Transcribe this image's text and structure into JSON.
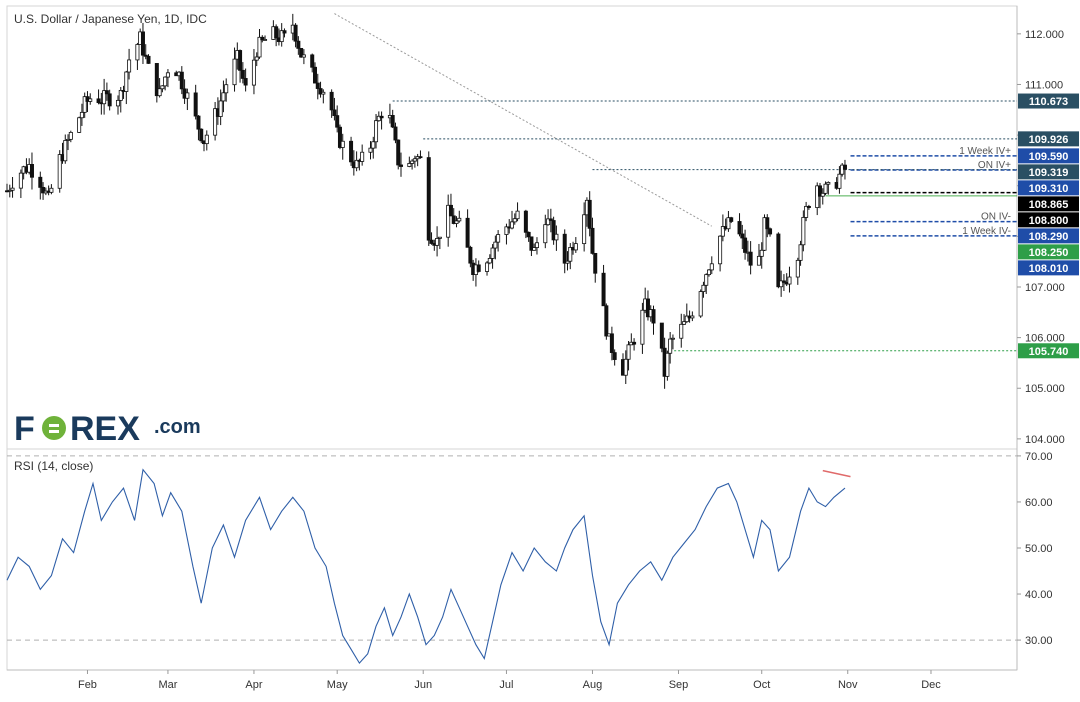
{
  "chart_data": [
    {
      "type": "candlestick",
      "title": "U.S. Dollar / Japanese Yen, 1D, IDC",
      "xlabel": "",
      "ylabel": "",
      "ylim": [
        103.8,
        112.55
      ],
      "yticks": [
        104.0,
        105.0,
        106.0,
        107.0,
        108.0,
        109.0,
        110.0,
        111.0,
        112.0
      ],
      "ytick_labels": [
        "104.000",
        "105.000",
        "106.000",
        "107.000",
        "108.000",
        "109.000",
        "110.000",
        "111.000",
        "112.000"
      ],
      "x_tick_labels": [
        "Feb",
        "Mar",
        "Apr",
        "May",
        "Jun",
        "Jul",
        "Aug",
        "Sep",
        "Oct",
        "Nov",
        "Dec"
      ],
      "x_tick_days": [
        31,
        60,
        91,
        121,
        152,
        182,
        213,
        244,
        274,
        305,
        335
      ],
      "x_range_days": [
        2,
        366
      ],
      "grid": false,
      "anchors": [
        {
          "day": 2,
          "close": 108.9
        },
        {
          "day": 5,
          "close": 109.2
        },
        {
          "day": 10,
          "close": 109.4
        },
        {
          "day": 14,
          "close": 109.1
        },
        {
          "day": 17,
          "close": 108.7
        },
        {
          "day": 20,
          "close": 109.4
        },
        {
          "day": 25,
          "close": 110.0
        },
        {
          "day": 30,
          "close": 110.6
        },
        {
          "day": 33,
          "close": 110.8
        },
        {
          "day": 36,
          "close": 110.7
        },
        {
          "day": 43,
          "close": 110.8
        },
        {
          "day": 46,
          "close": 111.5
        },
        {
          "day": 50,
          "close": 111.9
        },
        {
          "day": 53,
          "close": 111.3
        },
        {
          "day": 57,
          "close": 110.8
        },
        {
          "day": 61,
          "close": 111.5
        },
        {
          "day": 64,
          "close": 111.2
        },
        {
          "day": 70,
          "close": 110.3
        },
        {
          "day": 73,
          "close": 109.9
        },
        {
          "day": 78,
          "close": 110.5
        },
        {
          "day": 82,
          "close": 111.2
        },
        {
          "day": 85,
          "close": 111.5
        },
        {
          "day": 88,
          "close": 110.9
        },
        {
          "day": 92,
          "close": 111.7
        },
        {
          "day": 97,
          "close": 112.0
        },
        {
          "day": 102,
          "close": 111.9
        },
        {
          "day": 105,
          "close": 112.2
        },
        {
          "day": 108,
          "close": 111.6
        },
        {
          "day": 112,
          "close": 111.2
        },
        {
          "day": 116,
          "close": 110.9
        },
        {
          "day": 119,
          "close": 110.5
        },
        {
          "day": 121,
          "close": 110.0
        },
        {
          "day": 124,
          "close": 109.7
        },
        {
          "day": 128,
          "close": 109.4
        },
        {
          "day": 132,
          "close": 109.6
        },
        {
          "day": 135,
          "close": 110.2
        },
        {
          "day": 138,
          "close": 110.6
        },
        {
          "day": 140,
          "close": 110.3
        },
        {
          "day": 143,
          "close": 109.5
        },
        {
          "day": 146,
          "close": 109.3
        },
        {
          "day": 149,
          "close": 109.6
        },
        {
          "day": 151,
          "close": 109.5
        },
        {
          "day": 154,
          "close": 108.1
        },
        {
          "day": 157,
          "close": 107.9
        },
        {
          "day": 160,
          "close": 108.5
        },
        {
          "day": 165,
          "close": 108.2
        },
        {
          "day": 170,
          "close": 107.4
        },
        {
          "day": 174,
          "close": 107.5
        },
        {
          "day": 178,
          "close": 107.9
        },
        {
          "day": 182,
          "close": 108.2
        },
        {
          "day": 186,
          "close": 108.4
        },
        {
          "day": 189,
          "close": 108.0
        },
        {
          "day": 192,
          "close": 107.7
        },
        {
          "day": 196,
          "close": 108.4
        },
        {
          "day": 200,
          "close": 107.9
        },
        {
          "day": 203,
          "close": 107.5
        },
        {
          "day": 207,
          "close": 108.0
        },
        {
          "day": 211,
          "close": 108.8
        },
        {
          "day": 213,
          "close": 107.7
        },
        {
          "day": 216,
          "close": 106.8
        },
        {
          "day": 219,
          "close": 105.9
        },
        {
          "day": 222,
          "close": 105.6
        },
        {
          "day": 224,
          "close": 105.4
        },
        {
          "day": 228,
          "close": 106.0
        },
        {
          "day": 232,
          "close": 106.6
        },
        {
          "day": 236,
          "close": 106.3
        },
        {
          "day": 239,
          "close": 105.3
        },
        {
          "day": 241,
          "close": 105.9
        },
        {
          "day": 244,
          "close": 106.1
        },
        {
          "day": 248,
          "close": 106.4
        },
        {
          "day": 252,
          "close": 107.0
        },
        {
          "day": 256,
          "close": 107.6
        },
        {
          "day": 259,
          "close": 108.0
        },
        {
          "day": 263,
          "close": 108.3
        },
        {
          "day": 266,
          "close": 108.0
        },
        {
          "day": 269,
          "close": 107.6
        },
        {
          "day": 272,
          "close": 107.2
        },
        {
          "day": 275,
          "close": 108.2
        },
        {
          "day": 277,
          "close": 107.9
        },
        {
          "day": 280,
          "close": 106.9
        },
        {
          "day": 283,
          "close": 107.2
        },
        {
          "day": 287,
          "close": 107.7
        },
        {
          "day": 290,
          "close": 108.5
        },
        {
          "day": 293,
          "close": 109.1
        },
        {
          "day": 296,
          "close": 108.9
        },
        {
          "day": 299,
          "close": 108.9
        },
        {
          "day": 302,
          "close": 109.2
        },
        {
          "day": 304,
          "close": 109.32
        }
      ],
      "trendline": {
        "from": {
          "day": 120,
          "value": 112.4
        },
        "to": {
          "day": 256,
          "value": 108.2
        }
      },
      "horizontal_levels": [
        {
          "value": 110.673,
          "label": "110.673",
          "start_day": 141,
          "color": "#2a4f63",
          "style": "dotted"
        },
        {
          "value": 109.926,
          "label": "109.926",
          "start_day": 152,
          "color": "#2a4f63",
          "style": "dotted"
        },
        {
          "value": 109.59,
          "label": "109.590",
          "start_day": 306,
          "color": "#1f4da8",
          "style": "dashed",
          "annotation": "1 Week IV+"
        },
        {
          "value": 109.31,
          "label": "109.310",
          "start_day": 306,
          "color": "#1f4da8",
          "style": "dashed",
          "annotation": "ON IV+"
        },
        {
          "value": 109.319,
          "label": "109.319",
          "start_day": 213,
          "color": "#2a4f63",
          "style": "dotted"
        },
        {
          "value": 108.865,
          "label": "108.865",
          "start_day": 306,
          "color": "#000000",
          "style": "dashed"
        },
        {
          "value": 108.8,
          "label": "108.800",
          "start_day": 297,
          "color": "#4caf50",
          "style": "solid"
        },
        {
          "value": 108.29,
          "label": "108.290",
          "start_day": 306,
          "color": "#1f4da8",
          "style": "dashed",
          "annotation": "ON IV-"
        },
        {
          "value": 108.01,
          "label": "108.010",
          "start_day": 306,
          "color": "#1f4da8",
          "style": "dashed",
          "annotation": "1 Week IV-"
        },
        {
          "value": 105.74,
          "label": "105.740",
          "start_day": 241,
          "color": "#2e9e48",
          "style": "dotted"
        }
      ],
      "price_tags": [
        {
          "label": "110.673",
          "value": 110.673,
          "bg": "#2a4f63"
        },
        {
          "label": "109.926",
          "value": 109.926,
          "bg": "#2a4f63"
        },
        {
          "label": "109.590",
          "value": 109.59,
          "bg": "#1f4da8"
        },
        {
          "label": "109.310",
          "value": 109.31,
          "bg": "#1f4da8"
        },
        {
          "label": "109.319",
          "value": 109.319,
          "bg": "#2a4f63"
        },
        {
          "label": "108.865",
          "value": 108.865,
          "bg": "#000000"
        },
        {
          "label": "108.800",
          "value": 108.8,
          "bg": "#000000"
        },
        {
          "label": "108.290",
          "value": 108.29,
          "bg": "#1f4da8"
        },
        {
          "label": "108.250",
          "value": 108.25,
          "bg": "#2e9e48"
        },
        {
          "label": "108.010",
          "value": 108.01,
          "bg": "#1f4da8"
        },
        {
          "label": "105.740",
          "value": 105.74,
          "bg": "#2e9e48"
        }
      ]
    },
    {
      "type": "line",
      "title": "RSI (14, close)",
      "ylim": [
        23.5,
        71.5
      ],
      "yticks": [
        30,
        40,
        50,
        60,
        70
      ],
      "ytick_labels": [
        "30.00",
        "40.00",
        "50.00",
        "60.00",
        "70.00"
      ],
      "reference_lines": [
        30,
        70
      ],
      "series": [
        {
          "color": "#2f5fa8",
          "points": [
            [
              2,
              43
            ],
            [
              6,
              48
            ],
            [
              10,
              46
            ],
            [
              14,
              41
            ],
            [
              18,
              44
            ],
            [
              22,
              52
            ],
            [
              26,
              49
            ],
            [
              30,
              58
            ],
            [
              33,
              64
            ],
            [
              36,
              56
            ],
            [
              40,
              60
            ],
            [
              44,
              63
            ],
            [
              48,
              56
            ],
            [
              51,
              67
            ],
            [
              55,
              64
            ],
            [
              58,
              57
            ],
            [
              61,
              62
            ],
            [
              65,
              58
            ],
            [
              69,
              46
            ],
            [
              72,
              38
            ],
            [
              76,
              50
            ],
            [
              80,
              55
            ],
            [
              84,
              48
            ],
            [
              88,
              56
            ],
            [
              93,
              61
            ],
            [
              97,
              54
            ],
            [
              101,
              58
            ],
            [
              105,
              61
            ],
            [
              109,
              58
            ],
            [
              113,
              50
            ],
            [
              117,
              46
            ],
            [
              120,
              38
            ],
            [
              123,
              31
            ],
            [
              126,
              28
            ],
            [
              129,
              25
            ],
            [
              132,
              27
            ],
            [
              135,
              33
            ],
            [
              138,
              37
            ],
            [
              141,
              31
            ],
            [
              144,
              35
            ],
            [
              147,
              40
            ],
            [
              150,
              35
            ],
            [
              153,
              29
            ],
            [
              156,
              31
            ],
            [
              159,
              35
            ],
            [
              162,
              41
            ],
            [
              165,
              37
            ],
            [
              168,
              33
            ],
            [
              171,
              29
            ],
            [
              174,
              26
            ],
            [
              177,
              34
            ],
            [
              180,
              42
            ],
            [
              184,
              49
            ],
            [
              188,
              45
            ],
            [
              192,
              50
            ],
            [
              196,
              47
            ],
            [
              200,
              45
            ],
            [
              203,
              50
            ],
            [
              206,
              54
            ],
            [
              210,
              57
            ],
            [
              213,
              44
            ],
            [
              216,
              34
            ],
            [
              219,
              29
            ],
            [
              222,
              38
            ],
            [
              226,
              42
            ],
            [
              230,
              45
            ],
            [
              234,
              47
            ],
            [
              238,
              43
            ],
            [
              242,
              48
            ],
            [
              246,
              51
            ],
            [
              250,
              54
            ],
            [
              254,
              59
            ],
            [
              258,
              63
            ],
            [
              262,
              64
            ],
            [
              265,
              60
            ],
            [
              268,
              54
            ],
            [
              271,
              48
            ],
            [
              274,
              56
            ],
            [
              277,
              54
            ],
            [
              280,
              45
            ],
            [
              284,
              48
            ],
            [
              288,
              58
            ],
            [
              291,
              63
            ],
            [
              294,
              60
            ],
            [
              297,
              59
            ],
            [
              300,
              61
            ],
            [
              304,
              63
            ]
          ]
        },
        {
          "color": "#e06a6a",
          "points": [
            [
              296,
              66.8
            ],
            [
              306,
              65.5
            ]
          ]
        }
      ]
    }
  ],
  "logo": {
    "text_part1": "F",
    "text_part2": "REX",
    "suffix": ".com"
  }
}
